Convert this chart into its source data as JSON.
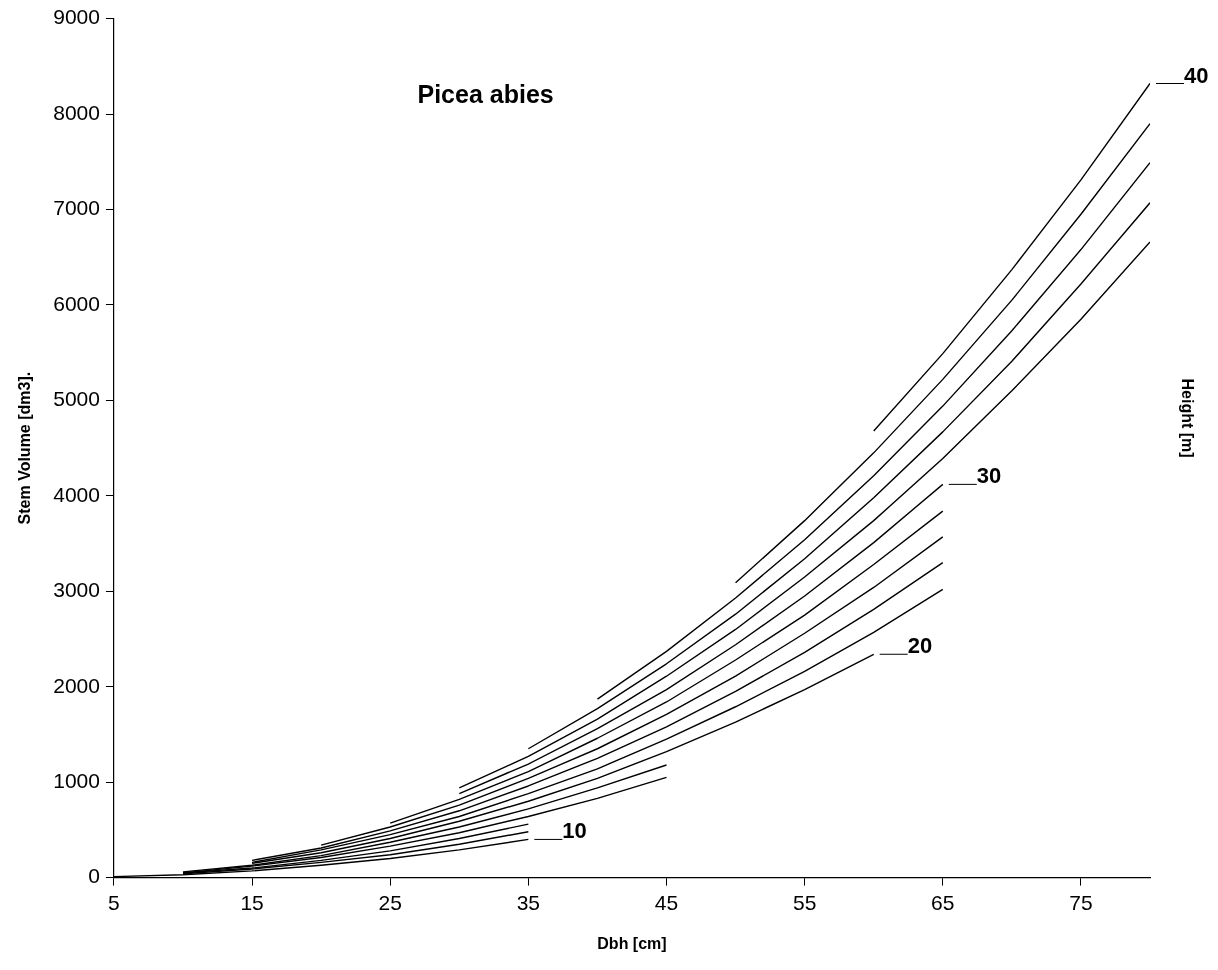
{
  "chart_data": {
    "type": "line",
    "title": "Picea abies",
    "xlabel": "Dbh [cm]",
    "ylabel": "Stem Volume [dm3].",
    "y2label": "Height [m]",
    "xlim": [
      5,
      80
    ],
    "xticks": [
      5,
      15,
      25,
      35,
      45,
      55,
      65,
      75
    ],
    "ylim": [
      0,
      9000
    ],
    "yticks": [
      0,
      1000,
      2000,
      3000,
      4000,
      5000,
      6000,
      7000,
      8000,
      9000
    ],
    "grid": false,
    "legend": false,
    "marker": "none",
    "line_style": "solid",
    "series": [
      {
        "color": "#000000",
        "x": [
          5,
          10,
          15,
          20,
          25,
          30,
          35
        ],
        "values": [
          10,
          30,
          70,
          130,
          200,
          290,
          400
        ]
      },
      {
        "color": "#000000",
        "x": [
          10,
          15,
          20,
          25,
          30,
          35
        ],
        "values": [
          40,
          90,
          160,
          240,
          350,
          480
        ]
      },
      {
        "color": "#000000",
        "x": [
          10,
          15,
          20,
          25,
          30,
          35
        ],
        "values": [
          50,
          100,
          180,
          280,
          410,
          560
        ]
      },
      {
        "color": "#000000",
        "x": [
          10,
          15,
          20,
          25,
          30,
          35,
          40,
          45
        ],
        "values": [
          50,
          120,
          210,
          330,
          470,
          640,
          830,
          1050
        ]
      },
      {
        "color": "#000000",
        "x": [
          10,
          15,
          20,
          25,
          30,
          35,
          40,
          45
        ],
        "values": [
          60,
          130,
          230,
          370,
          530,
          720,
          940,
          1180
        ]
      },
      {
        "color": "#000000",
        "x": [
          15,
          20,
          25,
          30,
          35,
          40,
          45,
          50,
          55,
          60
        ],
        "values": [
          150,
          260,
          410,
          590,
          800,
          1040,
          1320,
          1630,
          1970,
          2340
        ]
      },
      {
        "color": "#000000",
        "x": [
          15,
          20,
          25,
          30,
          35,
          40,
          45,
          50,
          55,
          60,
          65
        ],
        "values": [
          160,
          290,
          450,
          640,
          880,
          1140,
          1450,
          1790,
          2160,
          2570,
          3020
        ]
      },
      {
        "color": "#000000",
        "x": [
          15,
          20,
          25,
          30,
          35,
          40,
          45,
          50,
          55,
          60,
          65
        ],
        "values": [
          180,
          310,
          490,
          700,
          960,
          1250,
          1580,
          1950,
          2360,
          2810,
          3300
        ]
      },
      {
        "color": "#000000",
        "x": [
          20,
          25,
          30,
          35,
          40,
          45,
          50,
          55,
          60,
          65
        ],
        "values": [
          340,
          530,
          760,
          1040,
          1350,
          1710,
          2110,
          2560,
          3040,
          3570
        ]
      },
      {
        "color": "#000000",
        "x": [
          25,
          30,
          35,
          40,
          45,
          50,
          55,
          60,
          65
        ],
        "values": [
          570,
          820,
          1110,
          1460,
          1840,
          2280,
          2750,
          3280,
          3840
        ]
      },
      {
        "color": "#000000",
        "x": [
          30,
          35,
          40,
          45,
          50,
          55,
          60,
          65
        ],
        "values": [
          880,
          1190,
          1560,
          1970,
          2440,
          2950,
          3510,
          4120
        ]
      },
      {
        "color": "#000000",
        "x": [
          30,
          35,
          40,
          45,
          50,
          55,
          60,
          65,
          70,
          75,
          80
        ],
        "values": [
          940,
          1270,
          1660,
          2110,
          2600,
          3150,
          3740,
          4390,
          5100,
          5850,
          6660
        ]
      },
      {
        "color": "#000000",
        "x": [
          35,
          40,
          45,
          50,
          55,
          60,
          65,
          70,
          75,
          80
        ],
        "values": [
          1350,
          1770,
          2240,
          2760,
          3340,
          3980,
          4670,
          5410,
          6220,
          7070
        ]
      },
      {
        "color": "#000000",
        "x": [
          40,
          45,
          50,
          55,
          60,
          65,
          70,
          75,
          80
        ],
        "values": [
          1870,
          2370,
          2930,
          3540,
          4210,
          4940,
          5730,
          6580,
          7490
        ]
      },
      {
        "color": "#000000",
        "x": [
          50,
          55,
          60,
          65,
          70,
          75,
          80
        ],
        "values": [
          3090,
          3740,
          4450,
          5220,
          6050,
          6950,
          7900
        ]
      },
      {
        "color": "#000000",
        "x": [
          60,
          65,
          70,
          75,
          80
        ],
        "values": [
          4680,
          5490,
          6370,
          7310,
          8320
        ]
      }
    ],
    "annotations": [
      {
        "text": "10",
        "x": 35,
        "y": 400
      },
      {
        "text": "20",
        "x": 60,
        "y": 2340
      },
      {
        "text": "30",
        "x": 65,
        "y": 4120
      },
      {
        "text": "40",
        "x": 80,
        "y": 8320
      }
    ]
  }
}
